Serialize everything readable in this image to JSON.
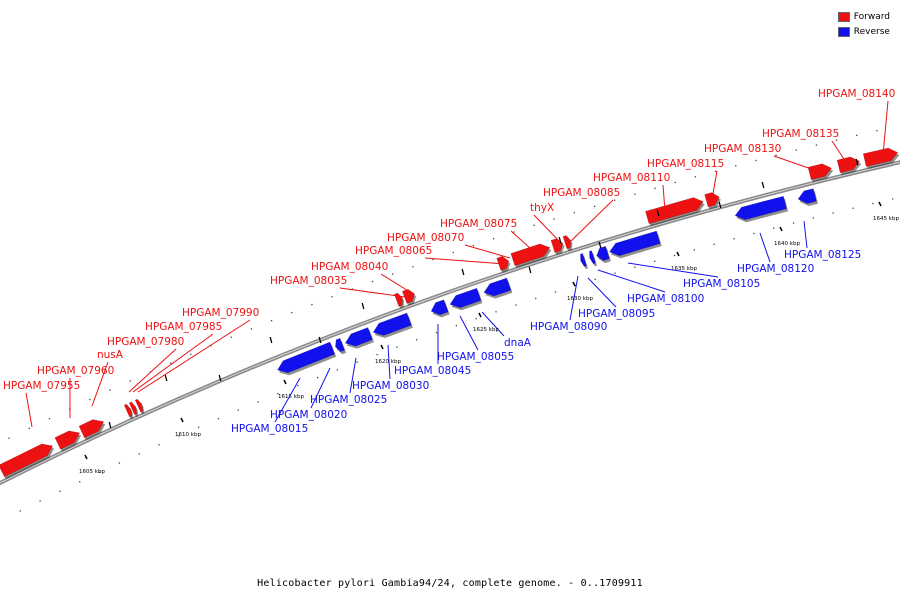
{
  "title": "Helicobacter pylori Gambia94/24, complete genome. - 0..1709911",
  "legend": {
    "forward": {
      "label": "Forward",
      "color": "#ee1111"
    },
    "reverse": {
      "label": "Reverse",
      "color": "#1111ee"
    }
  },
  "scale_labels": [
    "1605 kbp",
    "1610 kbp",
    "1615 kbp",
    "1620 kbp",
    "1625 kbp",
    "1630 kbp",
    "1635 kbp",
    "1640 kbp",
    "1645 kbp"
  ],
  "forward_genes": [
    "HPGAM_07955",
    "HPGAM_07960",
    "nusA",
    "HPGAM_07980",
    "HPGAM_07985",
    "HPGAM_07990",
    "HPGAM_08035",
    "HPGAM_08040",
    "HPGAM_08065",
    "HPGAM_08070",
    "HPGAM_08075",
    "thyX",
    "HPGAM_08085",
    "HPGAM_08110",
    "HPGAM_08115",
    "HPGAM_08130",
    "HPGAM_08135",
    "HPGAM_08140"
  ],
  "reverse_genes": [
    "HPGAM_08015",
    "HPGAM_08020",
    "HPGAM_08025",
    "HPGAM_08030",
    "HPGAM_08045",
    "HPGAM_08055",
    "dnaA",
    "HPGAM_08090",
    "HPGAM_08095",
    "HPGAM_08100",
    "HPGAM_08105",
    "HPGAM_08120",
    "HPGAM_08125"
  ]
}
